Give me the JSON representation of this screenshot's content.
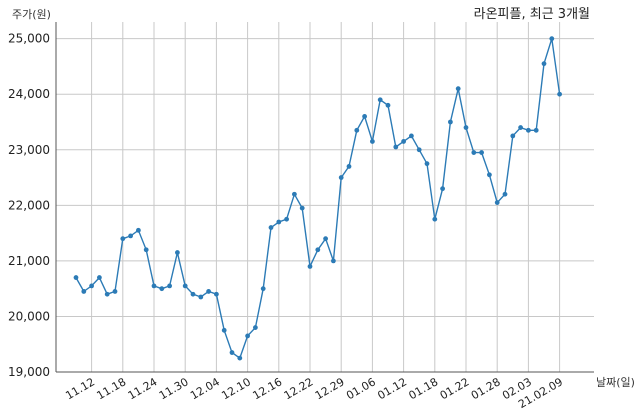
{
  "chart_data": {
    "type": "line",
    "title": "라온피플, 최근 3개월",
    "xlabel": "날짜(일)",
    "ylabel": "주가(원)",
    "ylim": [
      19000,
      25300
    ],
    "yticks": [
      19000,
      20000,
      21000,
      22000,
      23000,
      24000,
      25000
    ],
    "ytick_labels": [
      "19,000",
      "20,000",
      "21,000",
      "22,000",
      "23,000",
      "24,000",
      "25,000"
    ],
    "xtick_labels": [
      "11.12",
      "11.18",
      "11.24",
      "11.30",
      "12.04",
      "12.10",
      "12.16",
      "12.22",
      "12.29",
      "01.06",
      "01.12",
      "01.18",
      "01.22",
      "01.28",
      "02.03",
      "21.02.09"
    ],
    "xtick_positions": [
      2,
      6,
      10,
      14,
      18,
      22,
      26,
      30,
      34,
      38,
      42,
      46,
      50,
      54,
      58,
      62
    ],
    "grid": true,
    "line_color": "#2c7bb6",
    "series": [
      {
        "values": [
          20700,
          20450,
          20550,
          20700,
          20400,
          20450,
          21400,
          21450,
          21550,
          21200,
          20550,
          20500,
          20550,
          21150,
          20550,
          20400,
          20350,
          20450,
          20400,
          19750,
          19350,
          19250,
          19650,
          19800,
          20500,
          21600,
          21700,
          21750,
          22200,
          21950,
          20900,
          21200,
          21400,
          21000,
          22500,
          22700,
          23350,
          23600,
          23150,
          23900,
          23800,
          23050,
          23150,
          23250,
          23000,
          22750,
          21750,
          22300,
          23500,
          24100,
          23400,
          22950,
          22950,
          22550,
          22050,
          22200,
          23250,
          23400,
          23350,
          23350,
          24550,
          25000,
          24000
        ]
      }
    ]
  }
}
